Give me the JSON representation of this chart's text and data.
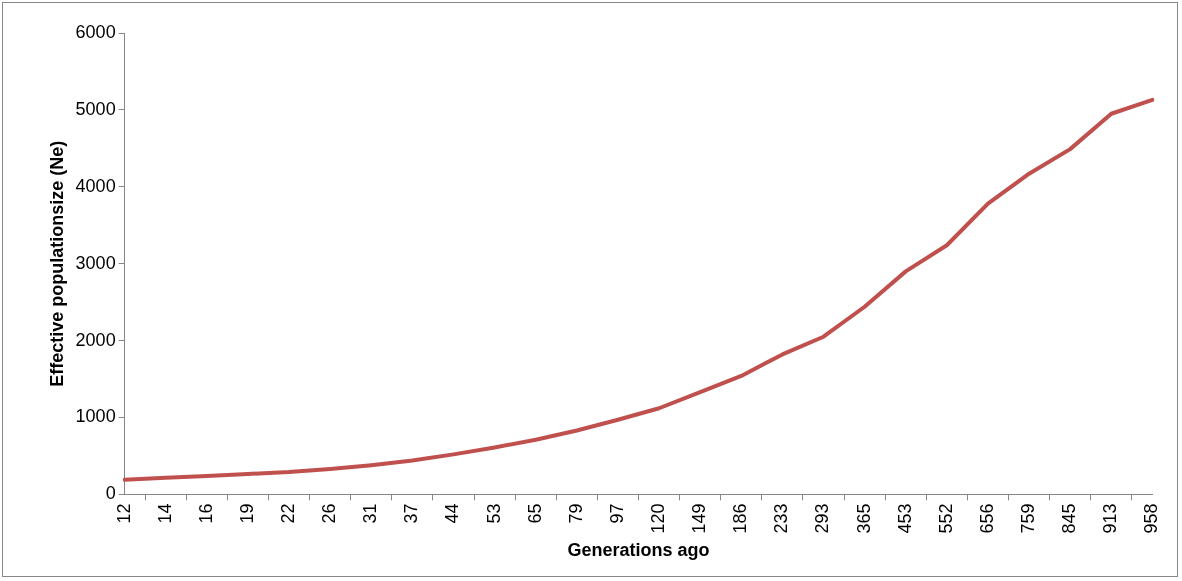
{
  "chart_data": {
    "type": "line",
    "xlabel": "Generations ago",
    "ylabel": "Effective populationsize (Ne)",
    "categories": [
      "12",
      "14",
      "16",
      "19",
      "22",
      "26",
      "31",
      "37",
      "44",
      "53",
      "65",
      "79",
      "97",
      "120",
      "149",
      "186",
      "233",
      "293",
      "365",
      "453",
      "552",
      "656",
      "759",
      "845",
      "913",
      "958"
    ],
    "series": [
      {
        "color": "#c0504d",
        "values": [
          190,
          215,
          240,
          265,
          290,
          330,
          380,
          440,
          520,
          610,
          710,
          830,
          970,
          1120,
          1330,
          1540,
          1820,
          2050,
          2440,
          2900,
          3240,
          3780,
          4170,
          4490,
          4950,
          5130
        ]
      }
    ],
    "ylim": [
      0,
      6000
    ],
    "yticks": [
      0,
      1000,
      2000,
      3000,
      4000,
      5000,
      6000
    ],
    "grid": false,
    "legend": false,
    "marker": "none",
    "line_style": "solid"
  }
}
